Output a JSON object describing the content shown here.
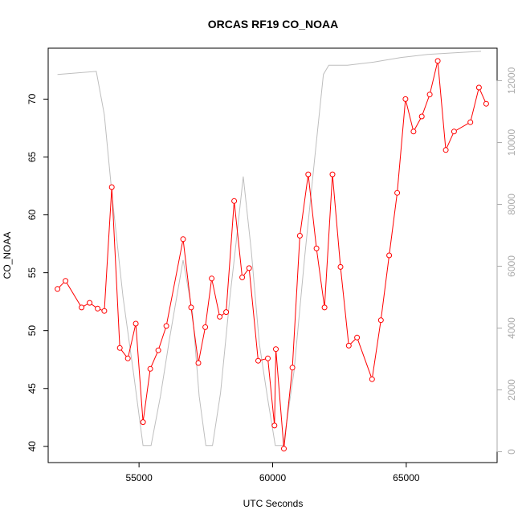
{
  "chart_data": {
    "type": "line",
    "title": "ORCAS RF19 CO_NOAA",
    "xlabel": "UTC Seconds",
    "ylabel": "CO_NOAA",
    "xlim": [
      51600,
      68400
    ],
    "ylim": [
      38.6,
      74.4
    ],
    "y2lim": [
      -350,
      13050
    ],
    "x_ticks": [
      55000,
      60000,
      65000
    ],
    "x_tick_labels": [
      "55000",
      "60000",
      "65000"
    ],
    "y_ticks": [
      40,
      45,
      50,
      55,
      60,
      65,
      70
    ],
    "y_tick_labels": [
      "40",
      "45",
      "50",
      "55",
      "60",
      "65",
      "70"
    ],
    "y2_ticks": [
      0,
      2000,
      4000,
      6000,
      8000,
      10000,
      12000
    ],
    "y2_tick_labels": [
      "0",
      "2000",
      "4000",
      "6000",
      "8000",
      "10000",
      "12000"
    ],
    "grid": false,
    "legend": "none",
    "series": [
      {
        "axis": "left",
        "style": "line+points",
        "color": "#ff0000",
        "x": [
          51950,
          52250,
          52850,
          53150,
          53450,
          53700,
          53980,
          54280,
          54580,
          54880,
          55150,
          55420,
          55720,
          56020,
          56650,
          56950,
          57220,
          57480,
          57720,
          58020,
          58260,
          58560,
          58860,
          59120,
          59460,
          59820,
          60070,
          60120,
          60420,
          60740,
          61020,
          61330,
          61640,
          61940,
          62240,
          62540,
          62850,
          63160,
          63720,
          64050,
          64360,
          64660,
          64970,
          65270,
          65580,
          65880,
          66180,
          66480,
          66790,
          67400,
          67720,
          67990
        ],
        "y": [
          53.6,
          54.3,
          52.0,
          52.4,
          51.9,
          51.7,
          62.4,
          48.5,
          47.6,
          50.6,
          42.1,
          46.7,
          48.3,
          50.4,
          57.9,
          52.0,
          47.2,
          50.3,
          54.5,
          51.2,
          51.6,
          61.2,
          54.6,
          55.4,
          47.4,
          47.6,
          41.8,
          48.4,
          39.8,
          46.8,
          58.2,
          63.5,
          57.1,
          52.0,
          63.5,
          55.5,
          48.7,
          49.4,
          45.8,
          50.9,
          56.5,
          61.9,
          70.0,
          67.2,
          68.5,
          70.4,
          73.3,
          65.6,
          67.2,
          68.0,
          71.0,
          69.6
        ]
      },
      {
        "axis": "right",
        "style": "line",
        "color": "#bebebe",
        "x": [
          51950,
          53400,
          53700,
          54000,
          54400,
          54800,
          55150,
          55450,
          55800,
          56150,
          56650,
          57000,
          57250,
          57500,
          57750,
          58050,
          58400,
          58600,
          58900,
          59200,
          59500,
          59800,
          60100,
          60400,
          60800,
          61200,
          61600,
          61900,
          62100,
          62800,
          63800,
          64800,
          65800,
          66800,
          67800
        ],
        "y": [
          12200,
          12300,
          10900,
          8200,
          5000,
          2500,
          200,
          200,
          1800,
          3700,
          6200,
          4500,
          1800,
          200,
          200,
          1900,
          5000,
          6500,
          8900,
          6500,
          3500,
          1800,
          200,
          200,
          2600,
          6300,
          9700,
          12200,
          12500,
          12500,
          12600,
          12750,
          12850,
          12900,
          12950
        ]
      }
    ]
  }
}
